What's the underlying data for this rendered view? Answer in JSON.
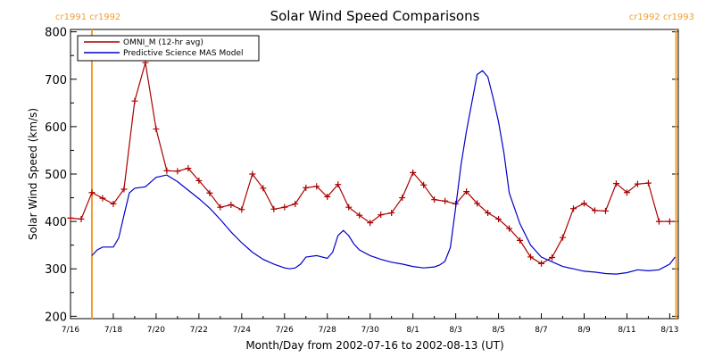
{
  "chart_data": {
    "type": "line",
    "title": "Solar Wind Speed Comparisons",
    "xlabel": "Month/Day from 2002-07-16 to 2002-08-13 (UT)",
    "ylabel": "Solar Wind Speed (km/s)",
    "x_unit": "day of year 2002 (Jul 16 = 197)",
    "xlim": [
      197,
      225.4
    ],
    "ylim": [
      195,
      805
    ],
    "y_ticks": [
      200,
      300,
      400,
      500,
      600,
      700,
      800
    ],
    "x_ticks": [
      {
        "x": 197,
        "label": "7/16"
      },
      {
        "x": 199,
        "label": "7/18"
      },
      {
        "x": 201,
        "label": "7/20"
      },
      {
        "x": 203,
        "label": "7/22"
      },
      {
        "x": 205,
        "label": "7/24"
      },
      {
        "x": 207,
        "label": "7/26"
      },
      {
        "x": 209,
        "label": "7/28"
      },
      {
        "x": 211,
        "label": "7/30"
      },
      {
        "x": 213,
        "label": "8/1"
      },
      {
        "x": 215,
        "label": "8/3"
      },
      {
        "x": 217,
        "label": "8/5"
      },
      {
        "x": 219,
        "label": "8/7"
      },
      {
        "x": 221,
        "label": "8/9"
      },
      {
        "x": 223,
        "label": "8/11"
      },
      {
        "x": 225,
        "label": "8/13"
      }
    ],
    "rotation_markers": [
      {
        "x": 198.0,
        "label": "cr1991 cr1992",
        "color": "#f0a030"
      },
      {
        "x": 225.3,
        "label": "cr1992 cr1993",
        "color": "#f0a030"
      }
    ],
    "legend_placement": "top-left",
    "series": [
      {
        "name": "OMNI_M (12-hr avg)",
        "color": "#aa0000",
        "marker": "plus",
        "x": [
          197.0,
          197.5,
          198.0,
          198.5,
          199.0,
          199.5,
          200.0,
          200.5,
          201.0,
          201.5,
          202.0,
          202.5,
          203.0,
          203.5,
          204.0,
          204.5,
          205.0,
          205.5,
          206.0,
          206.5,
          207.0,
          207.5,
          208.0,
          208.5,
          209.0,
          209.5,
          210.0,
          210.5,
          211.0,
          211.5,
          212.0,
          212.5,
          213.0,
          213.5,
          214.0,
          214.5,
          215.0,
          215.5,
          216.0,
          216.5,
          217.0,
          217.5,
          218.0,
          218.5,
          219.0,
          219.5,
          220.0,
          220.5,
          221.0,
          221.5,
          222.0,
          222.5,
          223.0,
          223.5,
          224.0,
          224.5,
          225.0
        ],
        "values": [
          407,
          405,
          461,
          449,
          437,
          468,
          654,
          735,
          595,
          507,
          506,
          512,
          486,
          460,
          430,
          435,
          425,
          500,
          470,
          426,
          430,
          437,
          471,
          474,
          452,
          478,
          430,
          413,
          397,
          414,
          418,
          450,
          503,
          477,
          446,
          443,
          437,
          463,
          438,
          418,
          405,
          385,
          360,
          325,
          311,
          324,
          366,
          427,
          438,
          423,
          422,
          480,
          461,
          479,
          481,
          400,
          400
        ]
      },
      {
        "name": "Predictive Science MAS Model",
        "color": "#0000cc",
        "marker": "none",
        "x": [
          198.0,
          198.25,
          198.5,
          198.75,
          199.0,
          199.25,
          199.5,
          199.75,
          200.0,
          200.5,
          201.0,
          201.5,
          202.0,
          202.5,
          203.0,
          203.5,
          204.0,
          204.5,
          205.0,
          205.5,
          206.0,
          206.5,
          207.0,
          207.25,
          207.5,
          207.75,
          208.0,
          208.5,
          209.0,
          209.25,
          209.5,
          209.75,
          210.0,
          210.25,
          210.5,
          211.0,
          211.5,
          212.0,
          212.5,
          213.0,
          213.5,
          214.0,
          214.25,
          214.5,
          214.75,
          215.0,
          215.25,
          215.5,
          215.75,
          216.0,
          216.25,
          216.5,
          216.75,
          217.0,
          217.25,
          217.5,
          218.0,
          218.5,
          219.0,
          219.5,
          220.0,
          220.5,
          221.0,
          221.5,
          222.0,
          222.5,
          223.0,
          223.5,
          224.0,
          224.5,
          225.0,
          225.25
        ],
        "values": [
          328,
          340,
          346,
          346,
          346,
          365,
          413,
          460,
          470,
          473,
          493,
          498,
          484,
          466,
          448,
          428,
          404,
          378,
          355,
          335,
          320,
          310,
          302,
          300,
          302,
          310,
          325,
          328,
          322,
          335,
          370,
          381,
          370,
          352,
          340,
          328,
          320,
          314,
          310,
          305,
          302,
          304,
          308,
          316,
          345,
          430,
          520,
          590,
          650,
          710,
          718,
          705,
          660,
          610,
          545,
          460,
          395,
          350,
          325,
          315,
          305,
          300,
          295,
          293,
          290,
          289,
          292,
          298,
          296,
          298,
          310,
          325
        ]
      }
    ]
  }
}
